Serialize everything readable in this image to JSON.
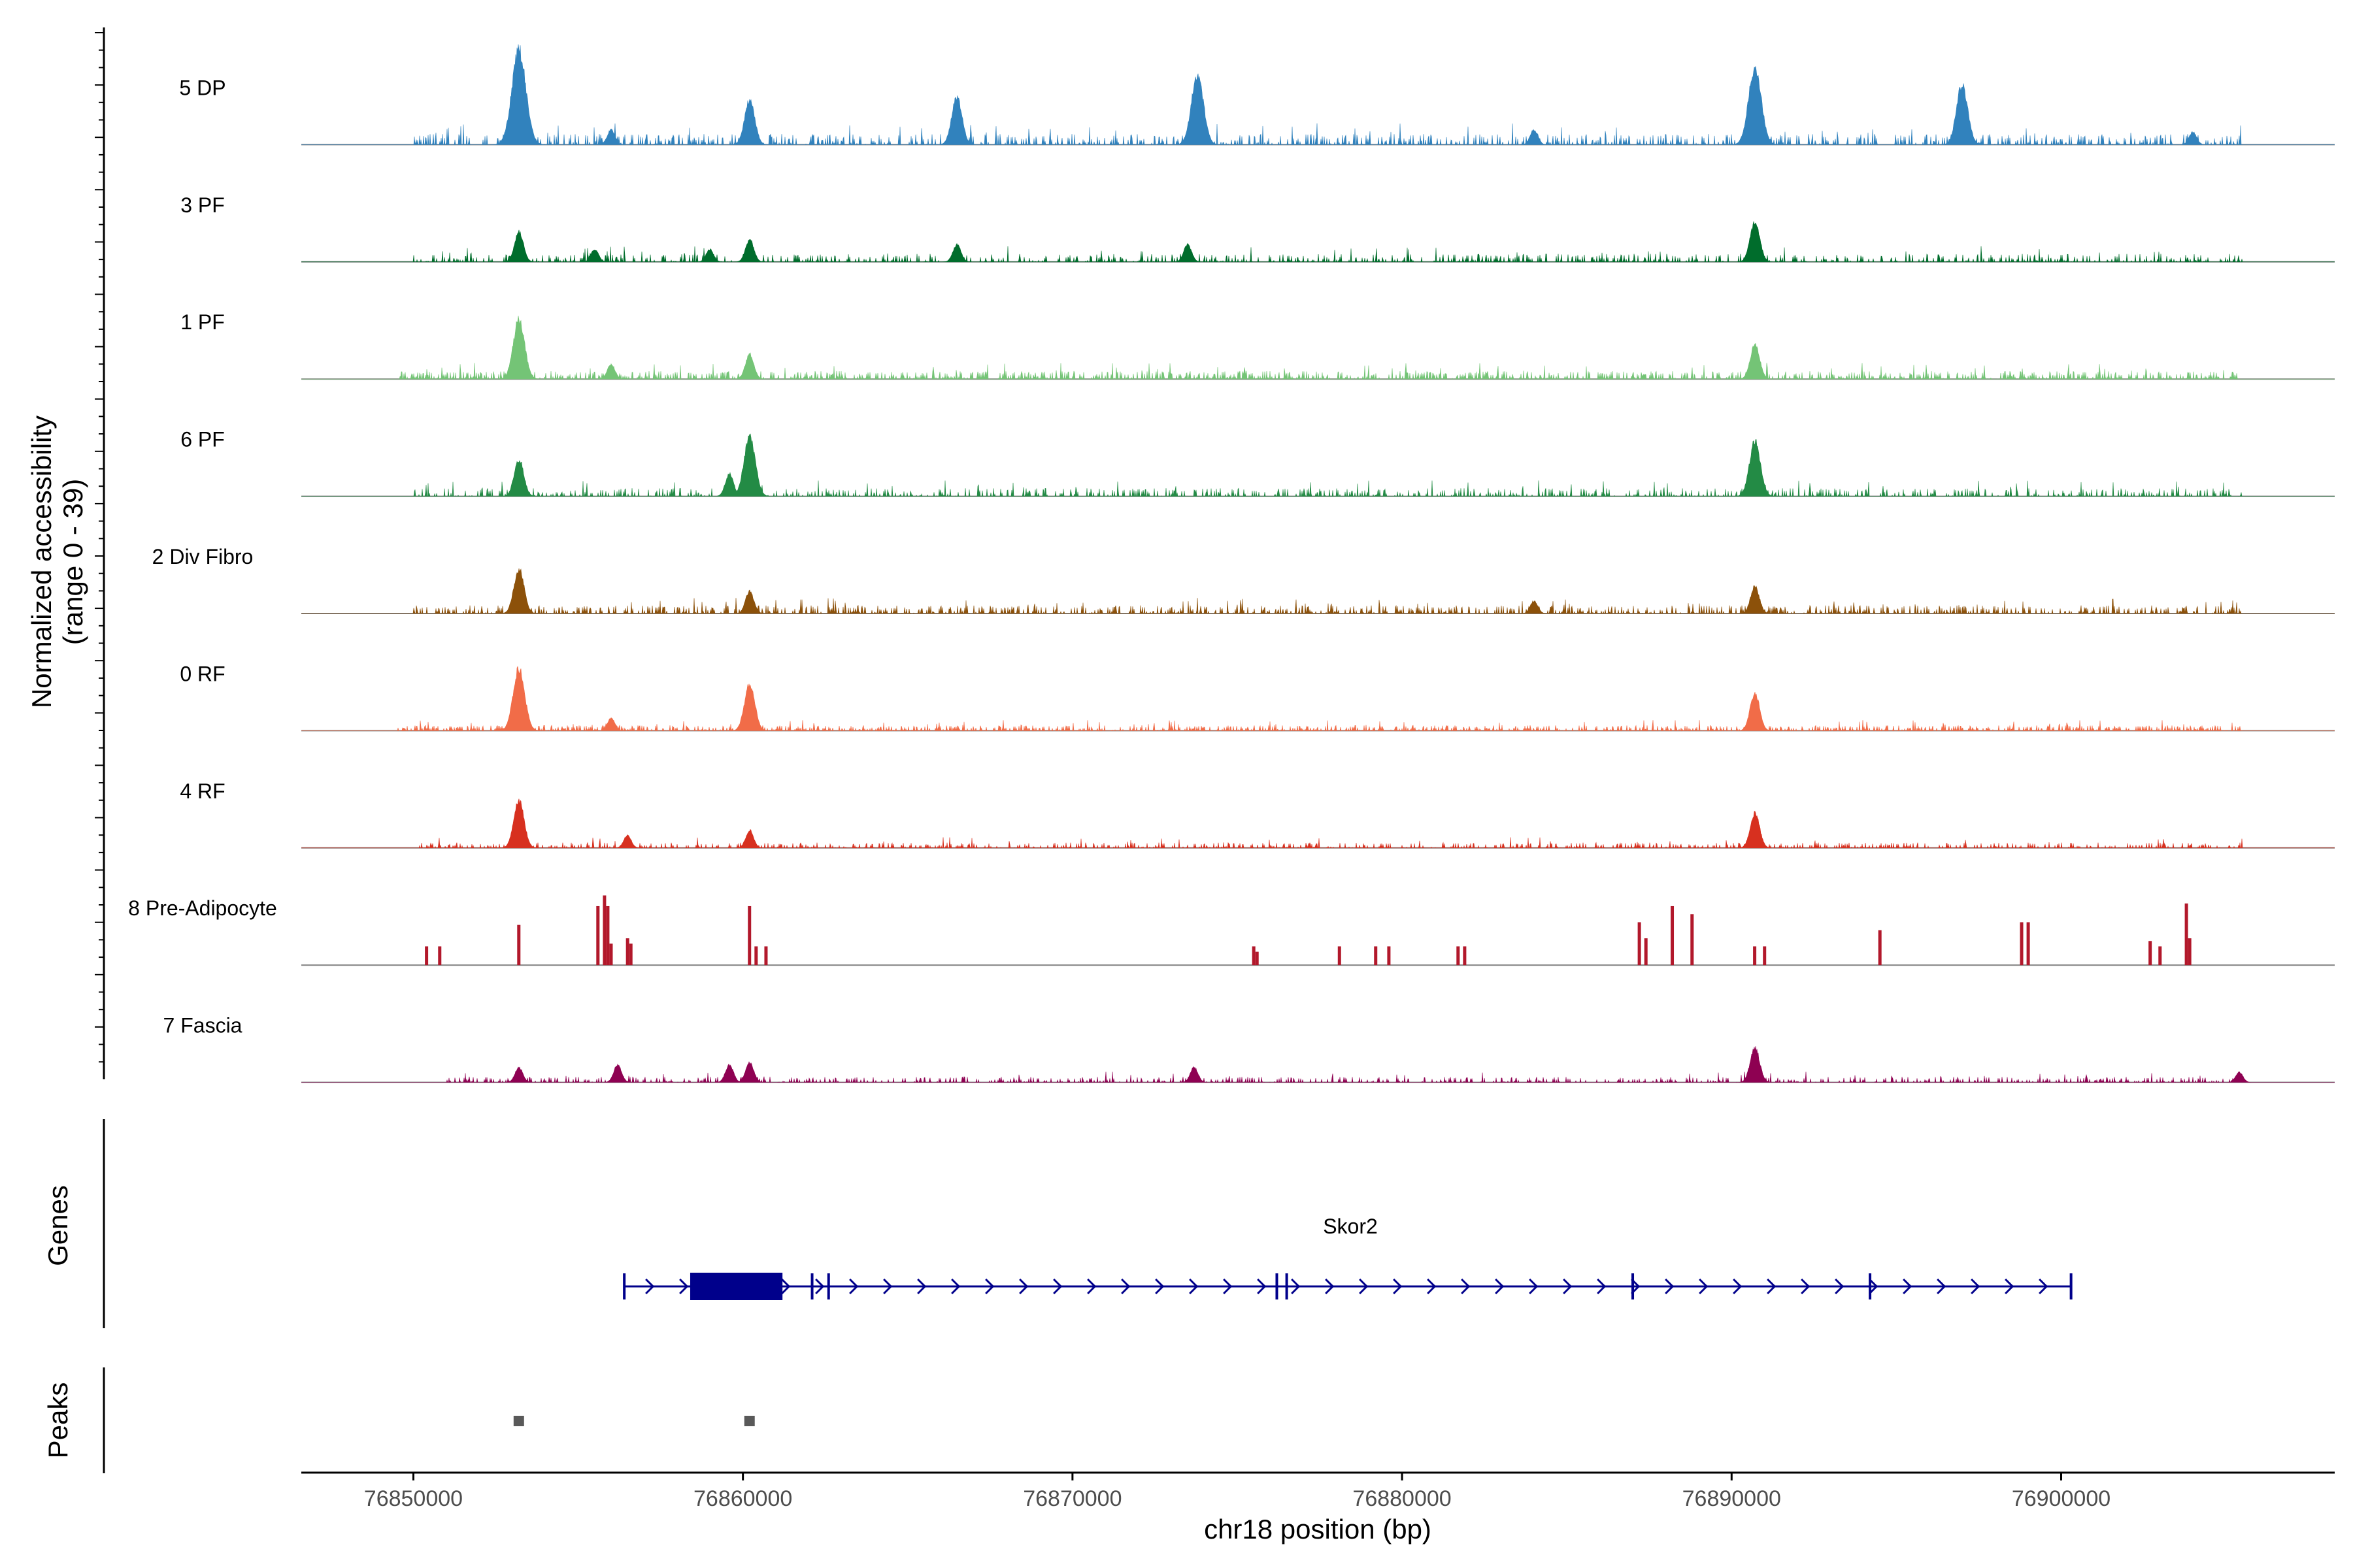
{
  "chart_data": {
    "type": "area",
    "title": "",
    "ylabel_line1": "Normalized accessibility",
    "ylabel_line2": "(range 0 - 39)",
    "ylim": [
      0,
      39
    ],
    "xlabel": "chr18 position (bp)",
    "xlim": [
      76846600,
      76908300
    ],
    "x_ticks": [
      76850000,
      76860000,
      76870000,
      76880000,
      76890000,
      76900000
    ],
    "x_tick_labels": [
      "76850000",
      "76860000",
      "76870000",
      "76880000",
      "76890000",
      "76900000"
    ],
    "tracks": [
      {
        "name": "5 DP",
        "color": "#3182bd",
        "style": "smooth",
        "baseline": 4,
        "density": 0.6,
        "range": [
          76850000,
          76905500
        ],
        "peaks": [
          [
            76853200,
            38
          ],
          [
            76860200,
            18
          ],
          [
            76866500,
            19
          ],
          [
            76873800,
            28
          ],
          [
            76890700,
            31
          ],
          [
            76897000,
            24
          ],
          [
            76856000,
            6
          ],
          [
            76884000,
            6
          ],
          [
            76904000,
            5
          ]
        ]
      },
      {
        "name": "3 PF",
        "color": "#006d2c",
        "style": "smooth",
        "baseline": 3,
        "density": 0.55,
        "range": [
          76850000,
          76905500
        ],
        "peaks": [
          [
            76853200,
            12
          ],
          [
            76855500,
            5
          ],
          [
            76859000,
            5
          ],
          [
            76860200,
            9
          ],
          [
            76866500,
            7
          ],
          [
            76873500,
            7
          ],
          [
            76890700,
            16
          ],
          [
            76848000,
            0
          ]
        ]
      },
      {
        "name": "1 PF",
        "color": "#74c476",
        "style": "smooth",
        "baseline": 3,
        "density": 0.8,
        "range": [
          76849500,
          76905500
        ],
        "peaks": [
          [
            76853200,
            24
          ],
          [
            76856000,
            6
          ],
          [
            76860200,
            10
          ],
          [
            76890700,
            14
          ]
        ]
      },
      {
        "name": "6 PF",
        "color": "#238b45",
        "style": "smooth",
        "baseline": 3,
        "density": 0.55,
        "range": [
          76850000,
          76905500
        ],
        "peaks": [
          [
            76853200,
            15
          ],
          [
            76860200,
            24
          ],
          [
            76859600,
            9
          ],
          [
            76890700,
            22
          ]
        ]
      },
      {
        "name": "2 Div Fibro",
        "color": "#8c510a",
        "style": "smooth",
        "baseline": 3,
        "density": 0.7,
        "range": [
          76850000,
          76905500
        ],
        "peaks": [
          [
            76853200,
            18
          ],
          [
            76860200,
            9
          ],
          [
            76884000,
            5
          ],
          [
            76890700,
            11
          ]
        ]
      },
      {
        "name": "0 RF",
        "color": "#f16c48",
        "style": "smooth",
        "baseline": 2,
        "density": 0.8,
        "range": [
          76849500,
          76905500
        ],
        "peaks": [
          [
            76853200,
            25
          ],
          [
            76856000,
            5
          ],
          [
            76860200,
            19
          ],
          [
            76890700,
            15
          ]
        ]
      },
      {
        "name": "4 RF",
        "color": "#d7301f",
        "style": "smooth",
        "baseline": 2,
        "density": 0.55,
        "range": [
          76850000,
          76905500
        ],
        "peaks": [
          [
            76853200,
            19
          ],
          [
            76856500,
            5
          ],
          [
            76860200,
            7
          ],
          [
            76890700,
            14
          ]
        ]
      },
      {
        "name": "8 Pre-Adipocyte",
        "color": "#b2182b",
        "style": "bars",
        "baseline": 0,
        "density": 0,
        "range": [
          76850000,
          76905500
        ],
        "bars": [
          [
            76850400,
            7
          ],
          [
            76850800,
            7
          ],
          [
            76853200,
            15
          ],
          [
            76855600,
            22
          ],
          [
            76855800,
            26
          ],
          [
            76855900,
            22
          ],
          [
            76856000,
            8
          ],
          [
            76856500,
            10
          ],
          [
            76856600,
            8
          ],
          [
            76860200,
            22
          ],
          [
            76860400,
            7
          ],
          [
            76860700,
            7
          ],
          [
            76875500,
            7
          ],
          [
            76875600,
            5
          ],
          [
            76878100,
            7
          ],
          [
            76879200,
            7
          ],
          [
            76879600,
            7
          ],
          [
            76881700,
            7
          ],
          [
            76881900,
            7
          ],
          [
            76887200,
            16
          ],
          [
            76887400,
            10
          ],
          [
            76888200,
            22
          ],
          [
            76888800,
            19
          ],
          [
            76890700,
            7
          ],
          [
            76891000,
            7
          ],
          [
            76894500,
            13
          ],
          [
            76898800,
            16
          ],
          [
            76899000,
            16
          ],
          [
            76902700,
            9
          ],
          [
            76903000,
            7
          ],
          [
            76903800,
            23
          ],
          [
            76903900,
            10
          ]
        ]
      },
      {
        "name": "7 Fascia",
        "color": "#8e0152",
        "style": "smooth",
        "baseline": 2,
        "density": 0.55,
        "range": [
          76851000,
          76905500
        ],
        "peaks": [
          [
            76853200,
            6
          ],
          [
            76856200,
            7
          ],
          [
            76859600,
            7
          ],
          [
            76860200,
            8
          ],
          [
            76873700,
            6
          ],
          [
            76890700,
            14
          ],
          [
            76905400,
            4
          ]
        ]
      }
    ],
    "genes_label": "Genes",
    "gene": {
      "name": "Skor2",
      "start": 76856400,
      "end": 76900300,
      "strand": "+",
      "exon_thick": [
        76858400,
        76861200
      ],
      "exons": [
        76856400,
        76862100,
        76862600,
        76876200,
        76876500,
        76887000,
        76894200,
        76900300
      ]
    },
    "peaks_label": "Peaks",
    "peak_regions": [
      76853200,
      76860200
    ],
    "colors": {
      "axis": "#000000",
      "baseline": "#7f7f7f",
      "gene": "#00008b",
      "peak": "#595959",
      "tick_text": "#4d4d4d"
    }
  }
}
